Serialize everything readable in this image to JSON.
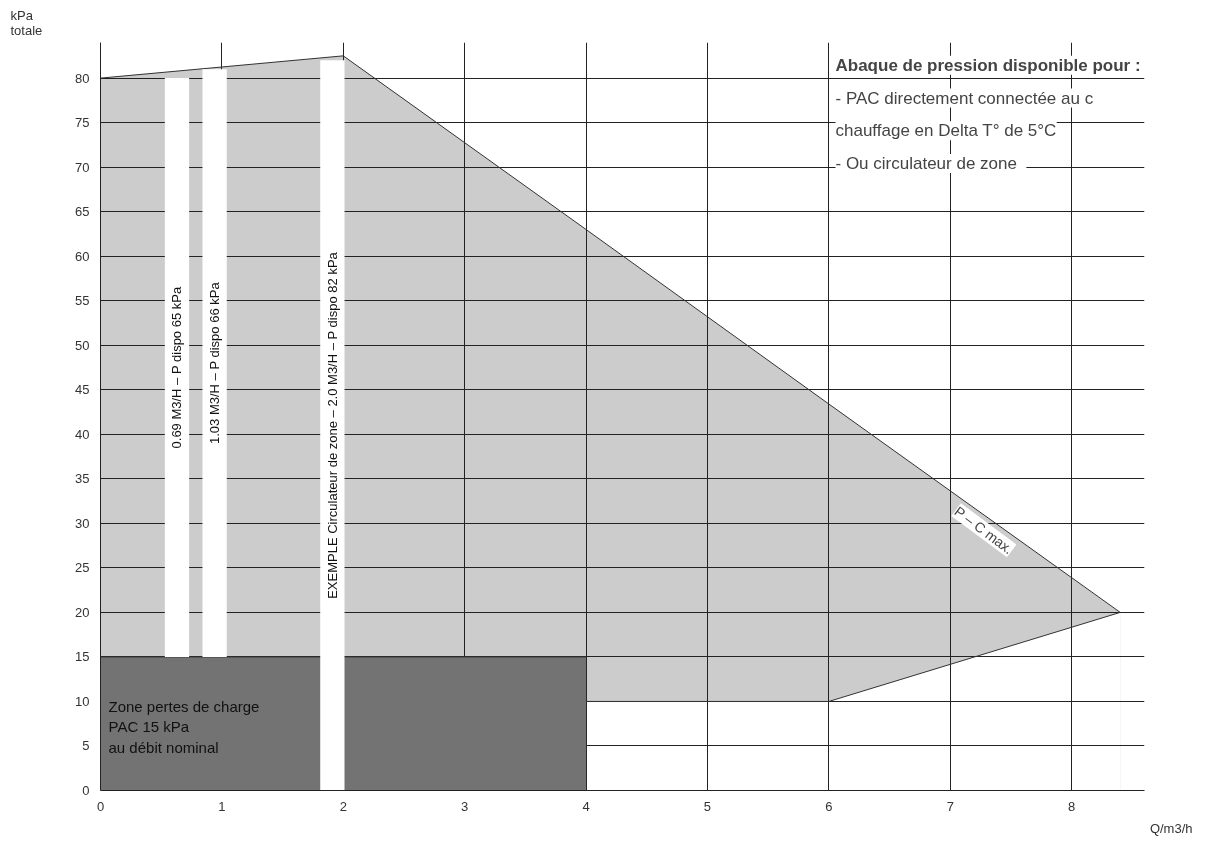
{
  "chart_data": {
    "type": "area",
    "title": "Abaque de pression disponible pour :",
    "xlabel": "Q/m3/h",
    "ylabel": "kPa\ntotale",
    "annotations": [
      "- PAC directement connectée au c",
      "chauffage en Delta T° de 5°C",
      "-   Ou circulateur de zone"
    ],
    "series": [
      {
        "name": "P – C max.",
        "color": "#cccccc",
        "x": [
          0,
          2,
          4,
          6,
          8.4
        ],
        "values": [
          80,
          82.5,
          63,
          43.4,
          20
        ]
      },
      {
        "color": "#ffffff",
        "x": [
          4,
          6,
          8.4
        ],
        "values": [
          10,
          10,
          20
        ]
      },
      {
        "name": "Zone pertes de charge\nPAC 15 kPa\nau débit nominal",
        "color": "#737373",
        "x": [
          0,
          4
        ],
        "values": [
          15,
          15
        ]
      },
      {
        "type": "bar",
        "color": "#ffffff",
        "x": [
          0.63,
          0.94,
          1.91
        ],
        "base": [
          15,
          15,
          0
        ],
        "values": [
          65,
          66,
          82
        ],
        "value_labels": [
          "0.69 M3/H – P dispo 65 kPa",
          "1.03 M3/H – P dispo 66 kPa",
          "EXEMPLE Circulateur de zone – 2.0 M3/H – P dispo 82 kPa"
        ]
      }
    ],
    "xlim": [
      0,
      8.6
    ],
    "ylim": [
      0,
      84
    ],
    "xticks": [
      0,
      1,
      2,
      3,
      4,
      5,
      6,
      7,
      8
    ],
    "yticks": [
      0,
      5,
      10,
      15,
      20,
      25,
      30,
      35,
      40,
      45,
      50,
      55,
      60,
      65,
      70,
      75,
      80
    ],
    "grid": true
  }
}
